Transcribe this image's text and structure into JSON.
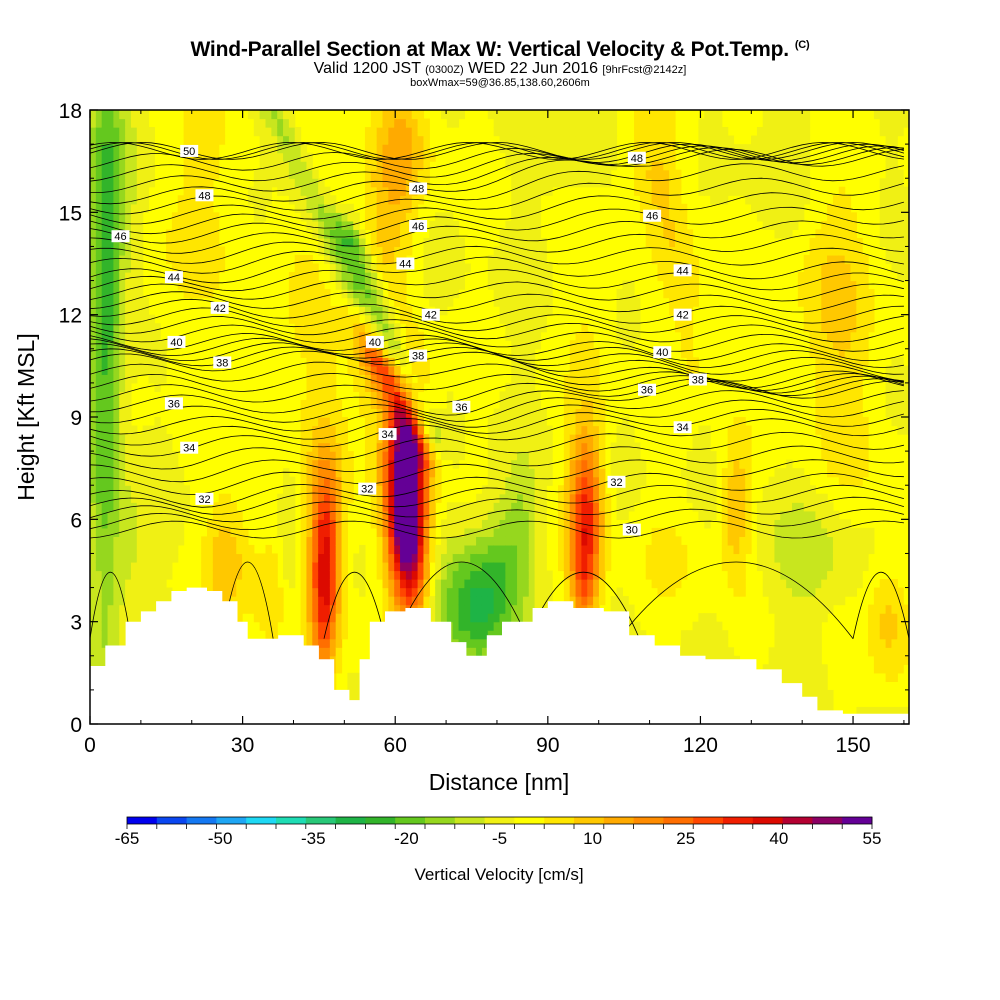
{
  "title": "Wind-Parallel Section at Max W: Vertical Velocity & Pot.Temp.",
  "copyright": "(C)",
  "subtitle": {
    "valid": "Valid 1200 JST",
    "zulu": "(0300Z)",
    "date": "WED 22 Jun 2016",
    "forecast": "[9hrFcst@2142z]"
  },
  "box_line": "boxWmax=59@36.85,138.60,2606m",
  "chart_data": {
    "type": "heatmap",
    "xlabel": "Distance [nm]",
    "ylabel": "Height [Kft MSL]",
    "xlim": [
      0,
      161
    ],
    "ylim": [
      0,
      18
    ],
    "x_ticks": [
      0,
      30,
      60,
      90,
      120,
      150
    ],
    "y_ticks": [
      0,
      3,
      6,
      9,
      12,
      15,
      18
    ],
    "colorbar": {
      "label": "Vertical Velocity [cm/s]",
      "tick_labels": [
        "-65",
        "-50",
        "-35",
        "-20",
        "-5",
        "10",
        "25",
        "40",
        "55"
      ],
      "min": -65,
      "max": 55,
      "step": 5,
      "colors": [
        "#0000ee",
        "#0a46f0",
        "#1478f2",
        "#1ea6f4",
        "#1ed8f4",
        "#1edcb4",
        "#28c878",
        "#1eb446",
        "#32b42a",
        "#64c81e",
        "#96d71e",
        "#c8e61e",
        "#f0f014",
        "#ffff00",
        "#ffe600",
        "#ffc800",
        "#ffaa00",
        "#ff8c00",
        "#ff6e00",
        "#ff4600",
        "#f01e00",
        "#dc0a00",
        "#b40032",
        "#8c0064",
        "#640096"
      ]
    },
    "theta_contour_labels": [
      {
        "x": 19.5,
        "y": 16.8,
        "label": "50"
      },
      {
        "x": 22.5,
        "y": 15.5,
        "label": "48"
      },
      {
        "x": 64.5,
        "y": 15.7,
        "label": "48"
      },
      {
        "x": 107.5,
        "y": 16.6,
        "label": "48"
      },
      {
        "x": 6.0,
        "y": 14.3,
        "label": "46"
      },
      {
        "x": 64.5,
        "y": 14.6,
        "label": "46"
      },
      {
        "x": 110.5,
        "y": 14.9,
        "label": "46"
      },
      {
        "x": 16.5,
        "y": 13.1,
        "label": "44"
      },
      {
        "x": 62.0,
        "y": 13.5,
        "label": "44"
      },
      {
        "x": 116.5,
        "y": 13.3,
        "label": "44"
      },
      {
        "x": 25.5,
        "y": 12.2,
        "label": "42"
      },
      {
        "x": 67.0,
        "y": 12.0,
        "label": "42"
      },
      {
        "x": 116.5,
        "y": 12.0,
        "label": "42"
      },
      {
        "x": 17.0,
        "y": 11.2,
        "label": "40"
      },
      {
        "x": 56.0,
        "y": 11.2,
        "label": "40"
      },
      {
        "x": 112.5,
        "y": 10.9,
        "label": "40"
      },
      {
        "x": 26.0,
        "y": 10.6,
        "label": "38"
      },
      {
        "x": 64.5,
        "y": 10.8,
        "label": "38"
      },
      {
        "x": 119.5,
        "y": 10.1,
        "label": "38"
      },
      {
        "x": 16.5,
        "y": 9.4,
        "label": "36"
      },
      {
        "x": 73.0,
        "y": 9.3,
        "label": "36"
      },
      {
        "x": 109.5,
        "y": 9.8,
        "label": "36"
      },
      {
        "x": 19.5,
        "y": 8.1,
        "label": "34"
      },
      {
        "x": 58.5,
        "y": 8.5,
        "label": "34"
      },
      {
        "x": 116.5,
        "y": 8.7,
        "label": "34"
      },
      {
        "x": 22.5,
        "y": 6.6,
        "label": "32"
      },
      {
        "x": 54.5,
        "y": 6.9,
        "label": "32"
      },
      {
        "x": 103.5,
        "y": 7.1,
        "label": "32"
      },
      {
        "x": 106.5,
        "y": 5.7,
        "label": "30"
      }
    ],
    "terrain_profile_kft": [
      [
        0,
        1.7
      ],
      [
        3,
        2.3
      ],
      [
        7,
        3.0
      ],
      [
        10,
        3.3
      ],
      [
        13,
        3.6
      ],
      [
        16,
        3.9
      ],
      [
        19,
        4.0
      ],
      [
        23,
        3.9
      ],
      [
        26,
        3.6
      ],
      [
        29,
        3.0
      ],
      [
        31,
        2.5
      ],
      [
        37,
        2.6
      ],
      [
        42,
        2.3
      ],
      [
        45,
        1.9
      ],
      [
        48,
        1.0
      ],
      [
        51,
        0.7
      ],
      [
        53,
        1.9
      ],
      [
        55,
        3.0
      ],
      [
        58,
        3.3
      ],
      [
        62,
        3.4
      ],
      [
        67,
        3.0
      ],
      [
        71,
        2.4
      ],
      [
        74,
        2.0
      ],
      [
        78,
        2.6
      ],
      [
        81,
        3.0
      ],
      [
        83,
        3.0
      ],
      [
        87,
        3.4
      ],
      [
        90,
        3.6
      ],
      [
        95,
        3.4
      ],
      [
        101,
        3.3
      ],
      [
        106,
        2.6
      ],
      [
        111,
        2.3
      ],
      [
        116,
        2.0
      ],
      [
        121,
        1.9
      ],
      [
        126,
        1.9
      ],
      [
        131,
        1.6
      ],
      [
        136,
        1.2
      ],
      [
        140,
        0.8
      ],
      [
        143,
        0.4
      ],
      [
        148,
        0.3
      ],
      [
        155,
        0.3
      ],
      [
        161,
        0.3
      ]
    ]
  }
}
